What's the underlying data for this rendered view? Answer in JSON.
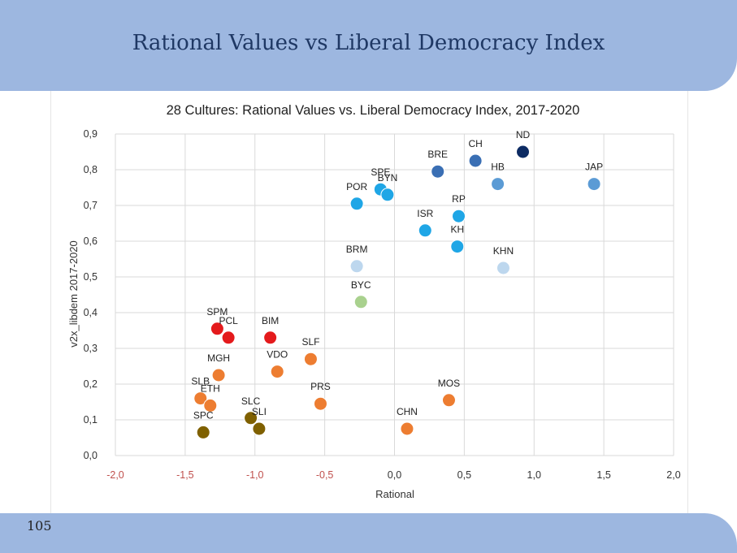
{
  "slide": {
    "title": "Rational Values vs Liberal Democracy Index",
    "page_number": "105"
  },
  "chart_data": {
    "type": "scatter",
    "title": "28 Cultures: Rational Values vs. Liberal Democracy Index, 2017-2020",
    "xlabel": "Rational",
    "ylabel": "v2x_libdem 2017-2020",
    "xlim": [
      -2.0,
      2.0
    ],
    "ylim": [
      0.0,
      0.9
    ],
    "x_ticks": [
      "-2,0",
      "-1,5",
      "-1,0",
      "-0,5",
      "0,0",
      "0,5",
      "1,0",
      "1,5",
      "2,0"
    ],
    "y_ticks": [
      "0,0",
      "0,1",
      "0,2",
      "0,3",
      "0,4",
      "0,5",
      "0,6",
      "0,7",
      "0,8",
      "0,9"
    ],
    "grid": true,
    "points": [
      {
        "label": "ND",
        "x": 0.92,
        "y": 0.85,
        "color": "#0d2b63"
      },
      {
        "label": "CH",
        "x": 0.58,
        "y": 0.825,
        "color": "#3a6fb4"
      },
      {
        "label": "BRE",
        "x": 0.31,
        "y": 0.795,
        "color": "#3a6fb4"
      },
      {
        "label": "HB",
        "x": 0.74,
        "y": 0.76,
        "color": "#5b9bd5"
      },
      {
        "label": "JAP",
        "x": 1.43,
        "y": 0.76,
        "color": "#5b9bd5"
      },
      {
        "label": "SPE",
        "x": -0.1,
        "y": 0.745,
        "color": "#1fa6e6"
      },
      {
        "label": "BYN",
        "x": -0.05,
        "y": 0.73,
        "color": "#1fa6e6"
      },
      {
        "label": "POR",
        "x": -0.27,
        "y": 0.705,
        "color": "#1fa6e6"
      },
      {
        "label": "RP",
        "x": 0.46,
        "y": 0.67,
        "color": "#1fa6e6"
      },
      {
        "label": "ISR",
        "x": 0.22,
        "y": 0.63,
        "color": "#1fa6e6"
      },
      {
        "label": "KH",
        "x": 0.45,
        "y": 0.585,
        "color": "#1fa6e6"
      },
      {
        "label": "KHN",
        "x": 0.78,
        "y": 0.525,
        "color": "#bdd7ee"
      },
      {
        "label": "BRM",
        "x": -0.27,
        "y": 0.53,
        "color": "#bdd7ee"
      },
      {
        "label": "BYC",
        "x": -0.24,
        "y": 0.43,
        "color": "#a9d18e"
      },
      {
        "label": "SPM",
        "x": -1.27,
        "y": 0.355,
        "color": "#e41a1c"
      },
      {
        "label": "PCL",
        "x": -1.19,
        "y": 0.33,
        "color": "#e41a1c"
      },
      {
        "label": "BIM",
        "x": -0.89,
        "y": 0.33,
        "color": "#e41a1c"
      },
      {
        "label": "SLF",
        "x": -0.6,
        "y": 0.27,
        "color": "#ed7d31"
      },
      {
        "label": "VDO",
        "x": -0.84,
        "y": 0.235,
        "color": "#ed7d31"
      },
      {
        "label": "MGH",
        "x": -1.26,
        "y": 0.225,
        "color": "#ed7d31"
      },
      {
        "label": "SLB",
        "x": -1.39,
        "y": 0.16,
        "color": "#ed7d31"
      },
      {
        "label": "ETH",
        "x": -1.32,
        "y": 0.14,
        "color": "#ed7d31"
      },
      {
        "label": "PRS",
        "x": -0.53,
        "y": 0.145,
        "color": "#ed7d31"
      },
      {
        "label": "MOS",
        "x": 0.39,
        "y": 0.155,
        "color": "#ed7d31"
      },
      {
        "label": "CHN",
        "x": 0.09,
        "y": 0.075,
        "color": "#ed7d31"
      },
      {
        "label": "SLC",
        "x": -1.03,
        "y": 0.105,
        "color": "#7f6000"
      },
      {
        "label": "SLI",
        "x": -0.97,
        "y": 0.075,
        "color": "#7f6000"
      },
      {
        "label": "SPC",
        "x": -1.37,
        "y": 0.065,
        "color": "#7f6000"
      }
    ]
  }
}
